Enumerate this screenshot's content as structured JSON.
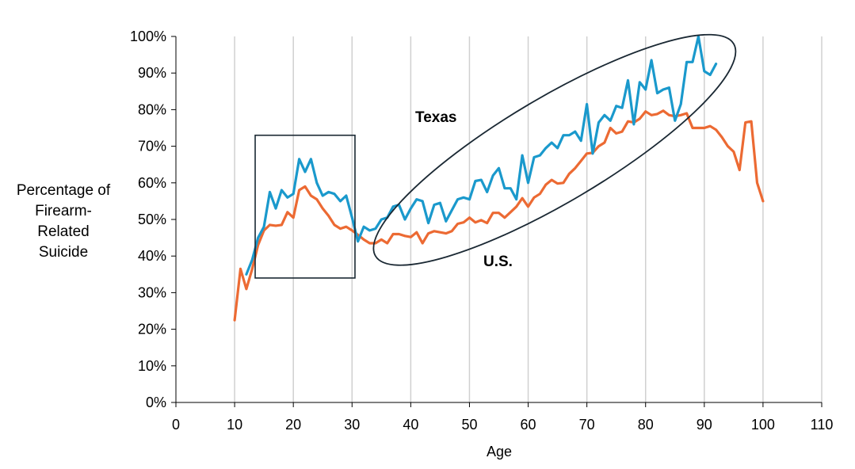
{
  "chart_data": {
    "type": "line",
    "xlabel": "Age",
    "ylabel": "Percentage of\nFirearm-\nRelated\nSuicide",
    "xlim": [
      0,
      110
    ],
    "ylim": [
      0,
      100
    ],
    "x_ticks": [
      "0",
      "10",
      "20",
      "30",
      "40",
      "50",
      "60",
      "70",
      "80",
      "90",
      "100",
      "110"
    ],
    "y_ticks": [
      "0%",
      "10%",
      "20%",
      "30%",
      "40%",
      "50%",
      "60%",
      "70%",
      "80%",
      "90%",
      "100%"
    ],
    "grid": "vertical",
    "colors": {
      "texas": "#1a99cc",
      "us": "#ec6a33",
      "annotation": "#1a2833",
      "grid": "#d0d0d0"
    },
    "annotations": {
      "texas_label": "Texas",
      "us_label": "U.S.",
      "box": {
        "x_range": [
          13.5,
          30.5
        ],
        "y_range": [
          34,
          73
        ]
      },
      "ellipse": {
        "from": [
          34,
          40
        ],
        "to": [
          95,
          98
        ]
      }
    },
    "series": [
      {
        "key": "us",
        "x": [
          10,
          11,
          12,
          13,
          14,
          15,
          16,
          17,
          18,
          19,
          20,
          21,
          22,
          23,
          24,
          25,
          26,
          27,
          28,
          29,
          30,
          31,
          32,
          33,
          34,
          35,
          36,
          37,
          38,
          39,
          40,
          41,
          42,
          43,
          44,
          45,
          46,
          47,
          48,
          49,
          50,
          51,
          52,
          53,
          54,
          55,
          56,
          57,
          58,
          59,
          60,
          61,
          62,
          63,
          64,
          65,
          66,
          67,
          68,
          69,
          70,
          71,
          72,
          73,
          74,
          75,
          76,
          77,
          78,
          79,
          80,
          81,
          82,
          83,
          84,
          85,
          86,
          87,
          88,
          89,
          90,
          91,
          92,
          93,
          94,
          95,
          96,
          97,
          98,
          99,
          100
        ],
        "values": [
          22.5,
          36.5,
          31,
          36.5,
          43,
          47,
          48.5,
          48.3,
          48.5,
          52,
          50.5,
          58,
          59,
          56.5,
          55.5,
          53,
          51,
          48.5,
          47.5,
          48,
          47,
          45.8,
          44.5,
          43.5,
          43.5,
          44.5,
          43.5,
          46,
          46,
          45.5,
          45.2,
          46.5,
          43.5,
          46.2,
          46.8,
          46.5,
          46.2,
          46.8,
          48.8,
          49.2,
          50.5,
          49.2,
          49.8,
          49,
          51.8,
          51.8,
          50.5,
          52,
          53.5,
          55.8,
          53.5,
          56,
          57,
          59.5,
          60.8,
          59.8,
          60,
          62.5,
          64,
          66,
          68,
          68.2,
          70,
          71,
          75,
          73.5,
          74,
          76.8,
          76.5,
          77.5,
          79.5,
          78.5,
          78.8,
          79.7,
          78.5,
          78.2,
          78.5,
          79,
          75,
          75,
          75,
          75.5,
          74.5,
          72.5,
          70,
          68.5,
          63.5,
          76.5,
          76.8,
          60,
          55
        ]
      },
      {
        "key": "texas",
        "x": [
          12,
          13,
          14,
          15,
          16,
          17,
          18,
          19,
          20,
          21,
          22,
          23,
          24,
          25,
          26,
          27,
          28,
          29,
          30,
          31,
          32,
          33,
          34,
          35,
          36,
          37,
          38,
          39,
          40,
          41,
          42,
          43,
          44,
          45,
          46,
          47,
          48,
          49,
          50,
          51,
          52,
          53,
          54,
          55,
          56,
          57,
          58,
          59,
          60,
          61,
          62,
          63,
          64,
          65,
          66,
          67,
          68,
          69,
          70,
          71,
          72,
          73,
          74,
          75,
          76,
          77,
          78,
          79,
          80,
          81,
          82,
          83,
          84,
          85,
          86,
          87,
          88,
          89,
          90,
          91,
          92
        ],
        "values": [
          35,
          39,
          45,
          48,
          57.5,
          53,
          58,
          56,
          57,
          66.5,
          63,
          66.5,
          60,
          56.5,
          57.5,
          57,
          55,
          56.5,
          50.5,
          44,
          48,
          47,
          47.5,
          50,
          50.5,
          53.5,
          54,
          50,
          53,
          55.5,
          55,
          49,
          54,
          54.5,
          49.5,
          52.5,
          55.5,
          56,
          55.5,
          60.5,
          60.8,
          57.5,
          62,
          64,
          58.5,
          58.5,
          55.5,
          67.5,
          60,
          67,
          67.5,
          69.5,
          71,
          69.5,
          73,
          73,
          74,
          71.5,
          81.5,
          68,
          76.5,
          78.5,
          77,
          81,
          80.5,
          88,
          76,
          87.5,
          85.5,
          93.5,
          84.5,
          85.5,
          86,
          77,
          81.5,
          93,
          93,
          100,
          90.5,
          89.5,
          92.5
        ]
      }
    ]
  }
}
